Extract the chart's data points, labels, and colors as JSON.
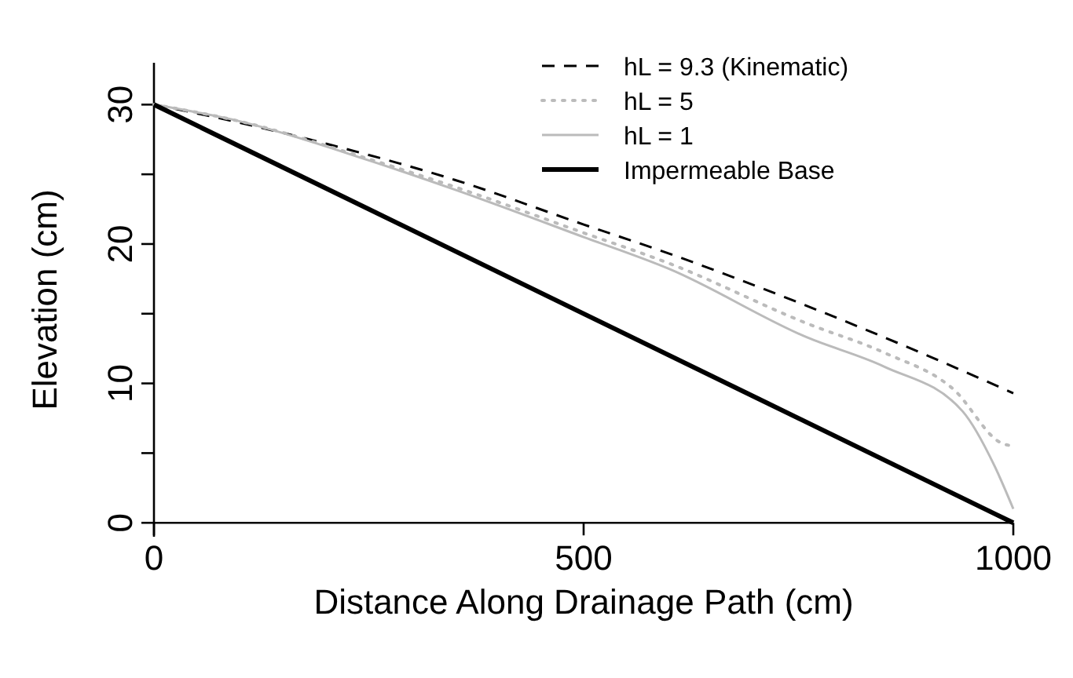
{
  "chart_data": {
    "type": "line",
    "xlabel": "Distance Along Drainage Path (cm)",
    "ylabel": "Elevation (cm)",
    "xlim": [
      0,
      1000
    ],
    "ylim": [
      -1,
      33
    ],
    "xticks": [
      0,
      500,
      1000
    ],
    "yticks": [
      0,
      {
        "value": 5,
        "label": null
      },
      10,
      {
        "value": 15,
        "label": null
      },
      20,
      {
        "value": 25,
        "label": null
      },
      30
    ],
    "grid": false,
    "legend": "top right",
    "series": [
      {
        "name": "hL = 9.3 (Kinematic)",
        "color": "#000000",
        "line_style": "dashed",
        "x": [
          0,
          100,
          200,
          350,
          500,
          600,
          750,
          900,
          1000
        ],
        "values": [
          30,
          28.7,
          27.2,
          24.6,
          21.4,
          19.3,
          15.8,
          12.0,
          9.3
        ]
      },
      {
        "name": "hL = 5",
        "color": "#bbbbbb",
        "line_style": "dotted",
        "x": [
          0,
          100,
          250,
          350,
          500,
          600,
          760,
          850,
          930,
          987,
          1000
        ],
        "values": [
          30,
          28.8,
          26.1,
          24.1,
          20.8,
          18.6,
          14.3,
          12.2,
          9.6,
          5.7,
          5.5
        ]
      },
      {
        "name": "hL = 1",
        "color": "#bbbbbb",
        "line_style": "solid",
        "x": [
          0,
          100,
          250,
          350,
          500,
          600,
          760,
          850,
          941,
          978,
          1000
        ],
        "values": [
          30,
          28.8,
          26.0,
          23.9,
          20.5,
          18.2,
          13.3,
          11.2,
          8.0,
          4.1,
          1.0
        ]
      },
      {
        "name": "Impermeable Base",
        "color": "#000000",
        "line_style": "solid",
        "x": [
          0,
          1000
        ],
        "values": [
          30,
          0
        ]
      }
    ]
  }
}
